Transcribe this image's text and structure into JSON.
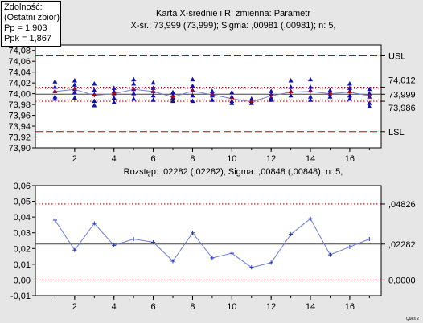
{
  "capability": {
    "title": "Zdolność:",
    "subtitle": "(Ostatni zbiór)",
    "pp": "Pp =   1,903",
    "ppk": "Ppk =   1,867"
  },
  "colors": {
    "background": "#e6e6e6",
    "plot": "#ffffff",
    "limits": "#c00000",
    "spec": "#c00000",
    "center": "#404040",
    "series": "#1010b0",
    "range_series": "#6a7cd8"
  },
  "footer_mark": "Ques 2",
  "chart_data": [
    {
      "type": "line",
      "title": "Karta X-średnie i R; zmienna:  Parametr",
      "subtitle": "X-śr.: 73,999 (73,999); Sigma: ,00981 (,00981); n: 5,",
      "ylim": [
        73.9,
        74.09
      ],
      "yticks": [
        73.9,
        73.92,
        73.94,
        73.96,
        73.98,
        74.0,
        74.02,
        74.04,
        74.06,
        74.08
      ],
      "ytick_labels": [
        "73,90",
        "73,92",
        "73,94",
        "73,96",
        "73,98",
        "74,00",
        "74,02",
        "74,04",
        "74,06",
        "74,08"
      ],
      "xlim": [
        0,
        17.6
      ],
      "xticks": [
        2,
        4,
        6,
        8,
        10,
        12,
        14,
        16
      ],
      "xtick_labels": [
        "2",
        "4",
        "6",
        "8",
        "10",
        "12",
        "14",
        "16"
      ],
      "x": [
        1,
        2,
        3,
        4,
        5,
        6,
        7,
        8,
        9,
        10,
        11,
        12,
        13,
        14,
        15,
        16,
        17
      ],
      "means": [
        74.004,
        74.008,
        73.997,
        74.0,
        74.008,
        74.004,
        73.994,
        74.005,
        73.998,
        73.991,
        73.985,
        73.996,
        74.003,
        74.004,
        74.0,
        74.003,
        73.996
      ],
      "individual": [
        [
          74.022,
          74.012,
          74.004,
          73.994,
          73.99
        ],
        [
          74.024,
          74.016,
          74.008,
          74.002,
          73.992
        ],
        [
          74.018,
          74.006,
          73.998,
          73.986,
          73.978
        ],
        [
          74.01,
          74.004,
          74.0,
          73.992,
          73.984
        ],
        [
          74.026,
          74.018,
          74.008,
          74.0,
          73.99
        ],
        [
          74.02,
          74.01,
          74.004,
          73.996,
          73.988
        ],
        [
          74.002,
          73.996,
          73.992,
          73.986
        ],
        [
          74.026,
          74.014,
          74.006,
          73.996,
          73.986
        ],
        [
          74.004,
          74.0,
          73.996,
          73.988
        ],
        [
          74.002,
          73.994,
          73.986,
          73.982
        ],
        [
          73.99,
          73.986,
          73.982
        ],
        [
          74.004,
          73.998,
          73.992,
          73.988
        ],
        [
          74.024,
          74.012,
          74.004,
          73.996
        ],
        [
          74.026,
          74.012,
          74.006,
          73.994,
          73.988
        ],
        [
          74.006,
          74.002,
          73.998,
          73.994
        ],
        [
          74.018,
          74.01,
          74.004,
          73.996,
          73.99
        ],
        [
          74.008,
          74.0,
          73.994,
          73.982,
          73.976
        ]
      ],
      "spec_lines": [
        {
          "name": "USL",
          "value": 74.07
        },
        {
          "name": "LSL",
          "value": 73.93
        }
      ],
      "control_lines": [
        {
          "label": "74,012",
          "value": 74.012,
          "style": "limit"
        },
        {
          "label": "73,999",
          "value": 73.999,
          "style": "center"
        },
        {
          "label": "73,986",
          "value": 73.986,
          "style": "limit"
        }
      ],
      "extra_lines": [
        74.009,
        73.989
      ]
    },
    {
      "type": "line",
      "title": "Rozstęp: ,02282 (,02282); Sigma: ,00848 (,00848); n: 5,",
      "ylim": [
        -0.01,
        0.06
      ],
      "yticks": [
        -0.01,
        0.0,
        0.01,
        0.02,
        0.03,
        0.04,
        0.05,
        0.06
      ],
      "ytick_labels": [
        "-0,01",
        "0,00",
        "0,01",
        "0,02",
        "0,03",
        "0,04",
        "0,05",
        "0,06"
      ],
      "xlim": [
        0,
        17.6
      ],
      "xticks": [
        2,
        4,
        6,
        8,
        10,
        12,
        14,
        16
      ],
      "xtick_labels": [
        "2",
        "4",
        "6",
        "8",
        "10",
        "12",
        "14",
        "16"
      ],
      "x": [
        1,
        2,
        3,
        4,
        5,
        6,
        7,
        8,
        9,
        10,
        11,
        12,
        13,
        14,
        15,
        16,
        17
      ],
      "values": [
        0.038,
        0.019,
        0.036,
        0.022,
        0.026,
        0.024,
        0.012,
        0.03,
        0.014,
        0.017,
        0.008,
        0.011,
        0.029,
        0.039,
        0.016,
        0.021,
        0.026
      ],
      "control_lines": [
        {
          "label": ",04826",
          "value": 0.04826,
          "style": "limit"
        },
        {
          "label": ",02282",
          "value": 0.02282,
          "style": "center"
        },
        {
          "label": "0,0000",
          "value": 0.0,
          "style": "limit"
        }
      ]
    }
  ]
}
